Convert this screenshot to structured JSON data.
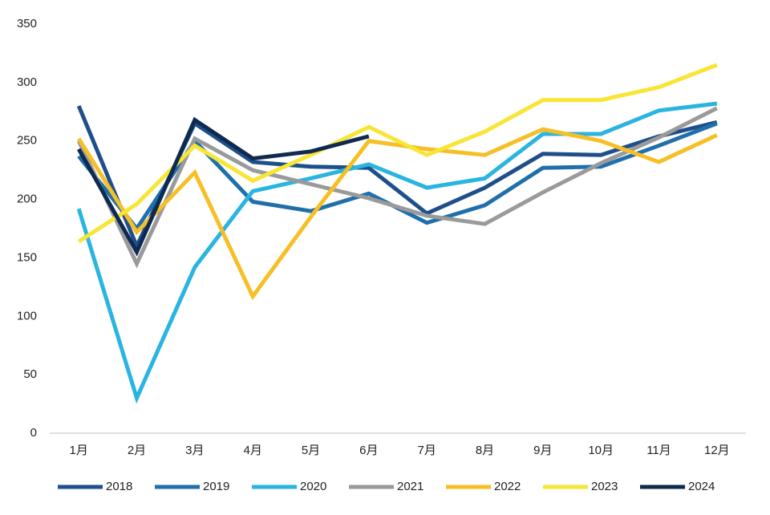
{
  "chart_data": {
    "type": "line",
    "categories": [
      "1月",
      "2月",
      "3月",
      "4月",
      "5月",
      "6月",
      "7月",
      "8月",
      "9月",
      "10月",
      "11月",
      "12月"
    ],
    "series": [
      {
        "name": "2018",
        "color": "#1e4f8a",
        "values": [
          280,
          160,
          265,
          232,
          228,
          227,
          188,
          210,
          239,
          238,
          254,
          266
        ]
      },
      {
        "name": "2019",
        "color": "#1f6fab",
        "values": [
          237,
          175,
          250,
          198,
          190,
          205,
          180,
          195,
          227,
          228,
          246,
          265
        ]
      },
      {
        "name": "2020",
        "color": "#2ab4e0",
        "values": [
          192,
          30,
          142,
          207,
          218,
          230,
          210,
          218,
          256,
          256,
          276,
          282
        ]
      },
      {
        "name": "2021",
        "color": "#9a9a9a",
        "values": [
          250,
          145,
          252,
          225,
          213,
          201,
          186,
          179,
          206,
          231,
          253,
          278
        ]
      },
      {
        "name": "2022",
        "color": "#f6bf26",
        "values": [
          252,
          172,
          223,
          117,
          185,
          250,
          243,
          238,
          260,
          250,
          232,
          255
        ]
      },
      {
        "name": "2023",
        "color": "#f8e534",
        "values": [
          164,
          196,
          246,
          216,
          238,
          262,
          238,
          258,
          285,
          285,
          296,
          315
        ]
      },
      {
        "name": "2024",
        "color": "#0e2a50",
        "values": [
          243,
          155,
          268,
          235,
          241,
          254,
          null,
          null,
          null,
          null,
          null,
          null
        ]
      }
    ],
    "ylim": [
      0,
      350
    ],
    "yticks": [
      0,
      50,
      100,
      150,
      200,
      250,
      300,
      350
    ],
    "grid": false,
    "legend": "bottom"
  }
}
